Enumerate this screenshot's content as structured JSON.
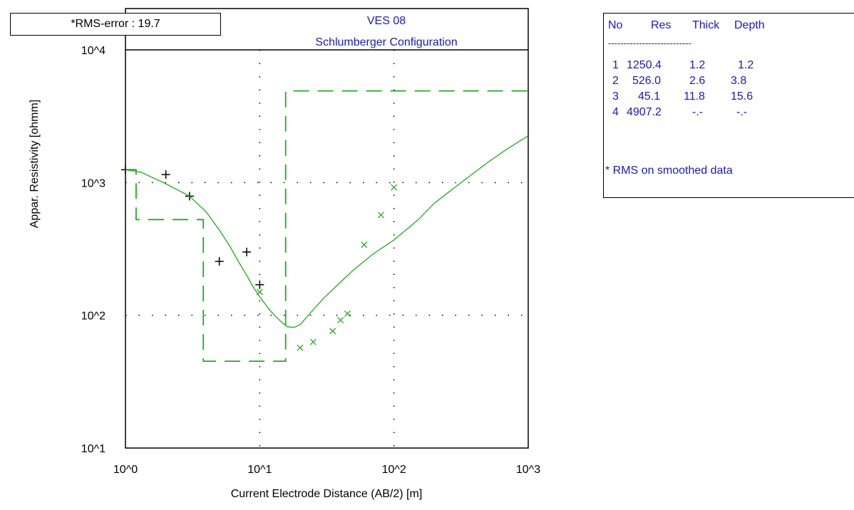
{
  "rms_box": {
    "label": "*RMS-error :",
    "value": "19.7"
  },
  "layer_table": {
    "headers": [
      "No",
      "Res",
      "Thick",
      "Depth"
    ],
    "separator": "---------------------------",
    "rows": [
      [
        "1",
        "1250.4",
        "1.2",
        "1.2"
      ],
      [
        "2",
        "526.0",
        "2.6",
        "3.8"
      ],
      [
        "3",
        "45.1",
        "11.8",
        "15.6"
      ],
      [
        "4",
        "4907.2",
        "-.-",
        "-.-"
      ]
    ],
    "note": "* RMS on smoothed data"
  },
  "chart_data": {
    "type": "scatter",
    "title": "VES 08",
    "subtitle": "Schlumberger Configuration",
    "xlabel": "Current Electrode Distance (AB/2) [m]",
    "ylabel": "Appar. Resistivity [ohmm]",
    "x_scale": "log",
    "y_scale": "log",
    "xlim": [
      1,
      1000
    ],
    "ylim": [
      10,
      10000
    ],
    "x_ticks": [
      1,
      10,
      100,
      1000
    ],
    "x_tick_labels": [
      "10^0",
      "10^1",
      "10^2",
      "10^3"
    ],
    "y_ticks": [
      10,
      100,
      1000,
      10000
    ],
    "y_tick_labels": [
      "10^1",
      "10^2",
      "10^3",
      "10^4"
    ],
    "grid": "dotted",
    "colors": {
      "model": "#22aa22",
      "observed_plus": "#000000",
      "observed_x": "#22aa22",
      "text_blue": "#1a1ab8"
    },
    "series": [
      {
        "style": "plus",
        "x": [
          1.0,
          2.0,
          3.0,
          5.0,
          8.0,
          10.0
        ],
        "y": [
          1250,
          1150,
          790,
          255,
          300,
          170
        ]
      },
      {
        "style": "x",
        "x": [
          10.0,
          20.0,
          25.0,
          35.0,
          40.0,
          45.0,
          60.0,
          80.0,
          100.0
        ],
        "y": [
          150,
          57,
          63,
          76,
          92,
          103,
          340,
          570,
          920
        ]
      },
      {
        "style": "solid-line",
        "x": [
          1.0,
          1.3,
          2.0,
          3.0,
          4.0,
          5.0,
          6.0,
          7.0,
          8.0,
          9.0,
          10.0,
          12.0,
          14.0,
          16.0,
          18.0,
          20.0,
          25.0,
          30.0,
          40.0,
          50.0,
          70.0,
          100.0,
          150.0,
          200.0,
          300.0,
          500.0,
          700.0,
          1000.0
        ],
        "y": [
          1250,
          1200,
          980,
          790,
          600,
          440,
          330,
          250,
          200,
          162,
          138,
          108,
          92,
          82,
          81,
          85,
          110,
          135,
          178,
          220,
          290,
          370,
          520,
          700,
          960,
          1420,
          1800,
          2250
        ]
      },
      {
        "style": "dashed-step",
        "x": [
          1.0,
          1.2,
          1.2,
          3.8,
          3.8,
          15.6,
          15.6,
          1000.0
        ],
        "y": [
          1250.4,
          1250.4,
          526.0,
          526.0,
          45.1,
          45.1,
          4907.2,
          4907.2
        ]
      }
    ]
  }
}
